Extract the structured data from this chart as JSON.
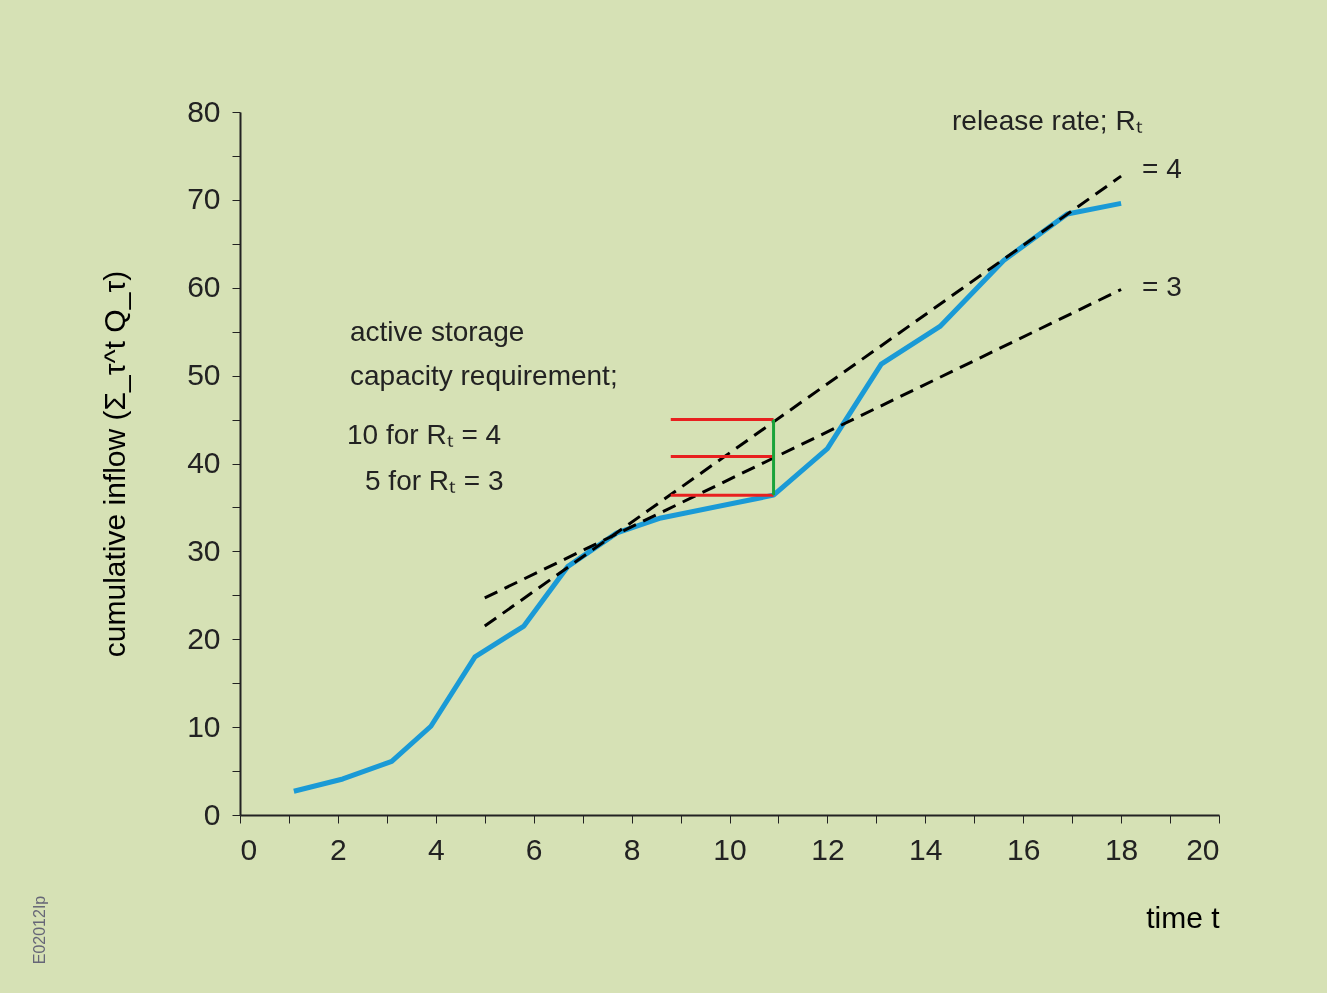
{
  "chart_data": {
    "type": "line",
    "xlabel": "time t",
    "ylabel": "cumulative inflow  (Σ_τ^t Q_τ)",
    "xlim": [
      0,
      20
    ],
    "ylim": [
      0,
      80
    ],
    "xticks": [
      0,
      {
        "value": 1,
        "label": null
      },
      2,
      {
        "value": 3,
        "label": null
      },
      4,
      {
        "value": 5,
        "label": null
      },
      6,
      {
        "value": 7,
        "label": null
      },
      8,
      {
        "value": 9,
        "label": null
      },
      10,
      {
        "value": 11,
        "label": null
      },
      12,
      {
        "value": 13,
        "label": null
      },
      14,
      {
        "value": 15,
        "label": null
      },
      16,
      {
        "value": 17,
        "label": null
      },
      18,
      {
        "value": 19,
        "label": null
      },
      20
    ],
    "yticks": [
      0,
      {
        "value": 5,
        "label": null
      },
      10,
      {
        "value": 15,
        "label": null
      },
      20,
      {
        "value": 25,
        "label": null
      },
      30,
      {
        "value": 35,
        "label": null
      },
      40,
      {
        "value": 45,
        "label": null
      },
      50,
      {
        "value": 55,
        "label": null
      },
      60,
      {
        "value": 65,
        "label": null
      },
      70,
      {
        "value": 75,
        "label": null
      },
      80
    ],
    "grid": false,
    "marker": "none",
    "series": [
      {
        "color": "#1a9ad6",
        "line_style": "solid",
        "x": [
          1.1,
          2.1,
          3.1,
          3.9,
          4.8,
          5.8,
          6.7,
          7.7,
          8.6,
          10.9,
          12.0,
          13.1,
          14.3,
          15.6,
          16.9,
          18.0
        ],
        "values": [
          2.7,
          4.1,
          6.1,
          10.1,
          18.0,
          21.5,
          28.3,
          32.1,
          33.8,
          36.4,
          41.7,
          51.3,
          55.6,
          63.1,
          68.4,
          69.6
        ]
      },
      {
        "color": "#000000",
        "line_style": "dashed",
        "x": [
          5.0,
          18.0
        ],
        "values": [
          21.5,
          72.7
        ]
      },
      {
        "color": "#000000",
        "line_style": "dashed",
        "x": [
          5.0,
          18.0
        ],
        "values": [
          24.7,
          59.8
        ]
      },
      {
        "color": "#e8201f",
        "line_style": "solid",
        "x": [
          8.8,
          10.9
        ],
        "values": [
          45.0,
          45.0
        ]
      },
      {
        "color": "#e8201f",
        "line_style": "solid",
        "x": [
          8.8,
          10.9
        ],
        "values": [
          40.8,
          40.8
        ]
      },
      {
        "color": "#e8201f",
        "line_style": "solid",
        "x": [
          8.8,
          10.9
        ],
        "values": [
          36.4,
          36.4
        ]
      },
      {
        "color": "#1aa33a",
        "line_style": "solid",
        "x": [
          10.9,
          10.9
        ],
        "values": [
          36.4,
          45.0
        ]
      }
    ],
    "annotations": [
      "release rate; Rₜ",
      "= 4",
      "= 3",
      "active storage",
      "capacity requirement;",
      "10 for Rₜ = 4",
      "5 for Rₜ = 3",
      "E02012Ip"
    ]
  }
}
